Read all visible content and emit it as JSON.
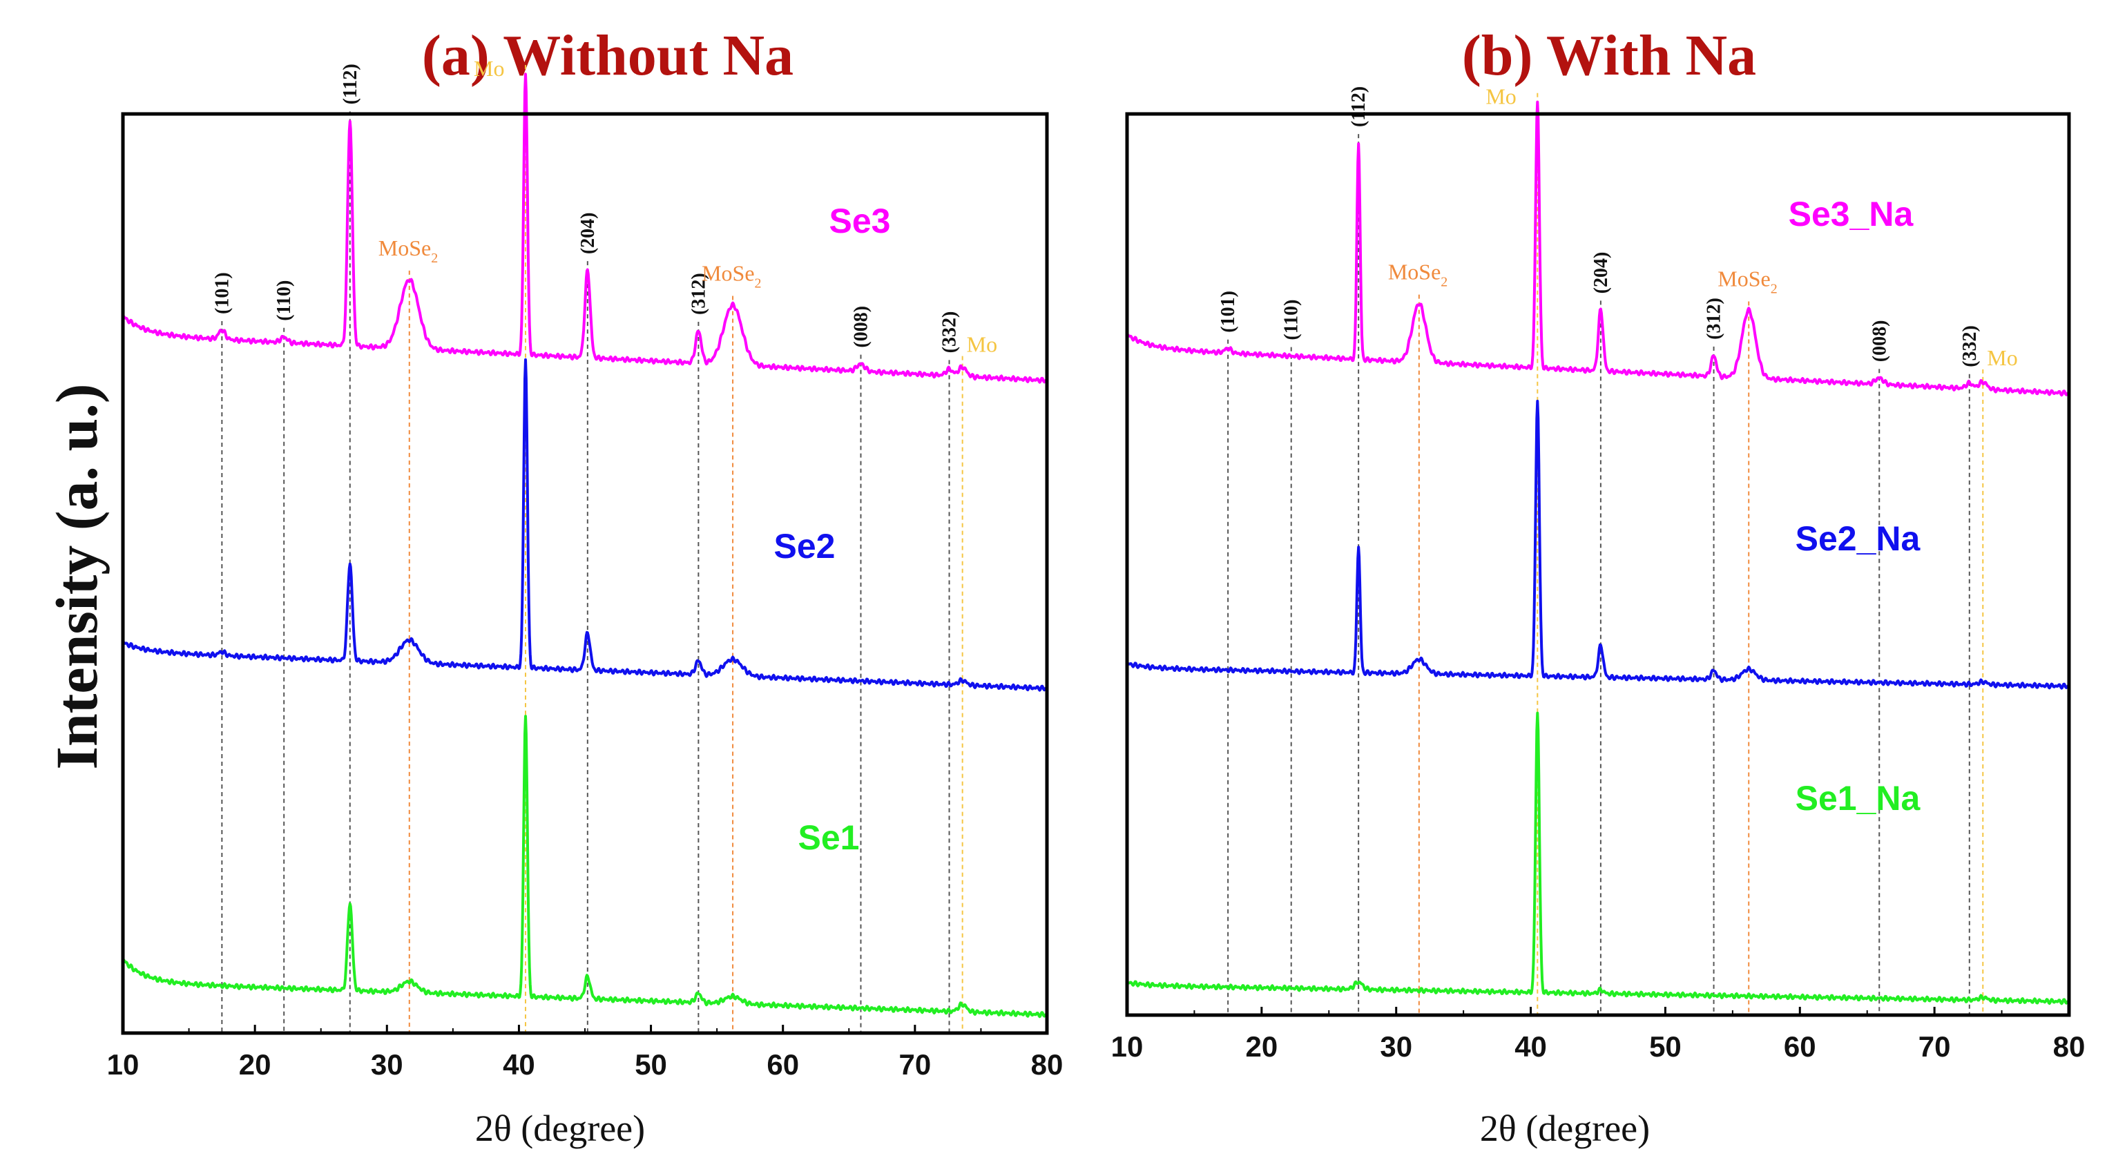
{
  "colors": {
    "title": "#b3120f",
    "mose2_ref": "#f08a3c",
    "mo_ref": "#f5c542",
    "hkl_ref": "#555555",
    "Se3": "#ff00ff",
    "Se2": "#1010ee",
    "Se1": "#22ee22"
  },
  "y_axis_label": "Intensity (a. u.)",
  "chart_data": [
    {
      "type": "line",
      "title": "(a) Without Na",
      "xlabel": "2θ (degree)",
      "ylabel": "Intensity (a. u.)",
      "xlim": [
        10,
        80
      ],
      "ylim": [
        0,
        100
      ],
      "grid": false,
      "xticks": [
        10,
        20,
        30,
        40,
        50,
        60,
        70,
        80
      ],
      "reference_lines": [
        {
          "x": 17.5,
          "label": "(101)",
          "kind": "hkl"
        },
        {
          "x": 22.2,
          "label": "(110)",
          "kind": "hkl"
        },
        {
          "x": 27.2,
          "label": "(112)",
          "kind": "hkl"
        },
        {
          "x": 31.7,
          "label": "MoSe",
          "sub": "2",
          "kind": "mose2"
        },
        {
          "x": 40.5,
          "label": "Mo",
          "kind": "mo"
        },
        {
          "x": 45.2,
          "label": "(204)",
          "kind": "hkl"
        },
        {
          "x": 53.6,
          "label": "(312)",
          "kind": "hkl"
        },
        {
          "x": 56.2,
          "label": "MoSe",
          "sub": "2",
          "kind": "mose2"
        },
        {
          "x": 65.9,
          "label": "(008)",
          "kind": "hkl"
        },
        {
          "x": 72.6,
          "label": "(332)",
          "kind": "hkl"
        },
        {
          "x": 73.6,
          "label": "Mo",
          "kind": "mo"
        }
      ],
      "series": [
        {
          "name": "Se3",
          "color": "#ff00ff",
          "baseline": [
            76,
            71
          ],
          "initial_bump": 2.0,
          "peaks": [
            {
              "x": 17.5,
              "h": 1.0,
              "w": 0.25
            },
            {
              "x": 22.2,
              "h": 0.6,
              "w": 0.25
            },
            {
              "x": 27.2,
              "h": 24.5,
              "w": 0.18
            },
            {
              "x": 31.7,
              "h": 7.5,
              "w": 0.7
            },
            {
              "x": 40.5,
              "h": 30.5,
              "w": 0.14
            },
            {
              "x": 45.2,
              "h": 9.5,
              "w": 0.2
            },
            {
              "x": 53.6,
              "h": 3.5,
              "w": 0.22
            },
            {
              "x": 56.2,
              "h": 6.5,
              "w": 0.7
            },
            {
              "x": 65.9,
              "h": 0.8,
              "w": 0.3
            },
            {
              "x": 72.6,
              "h": 0.7,
              "w": 0.25
            },
            {
              "x": 73.6,
              "h": 1.0,
              "w": 0.3
            }
          ]
        },
        {
          "name": "Se2",
          "color": "#1010ee",
          "baseline": [
            41.5,
            37.5
          ],
          "initial_bump": 1.0,
          "peaks": [
            {
              "x": 17.5,
              "h": 0.4,
              "w": 0.25
            },
            {
              "x": 27.2,
              "h": 10.6,
              "w": 0.18
            },
            {
              "x": 31.7,
              "h": 2.5,
              "w": 0.7
            },
            {
              "x": 40.5,
              "h": 33.5,
              "w": 0.14
            },
            {
              "x": 45.2,
              "h": 4.0,
              "w": 0.2
            },
            {
              "x": 53.6,
              "h": 1.5,
              "w": 0.22
            },
            {
              "x": 56.2,
              "h": 1.8,
              "w": 0.7
            },
            {
              "x": 73.6,
              "h": 0.5,
              "w": 0.3
            }
          ]
        },
        {
          "name": "Se1",
          "color": "#22ee22",
          "baseline": [
            5.5,
            2.0
          ],
          "initial_bump": 2.5,
          "peaks": [
            {
              "x": 27.2,
              "h": 9.5,
              "w": 0.18
            },
            {
              "x": 31.7,
              "h": 1.2,
              "w": 0.6
            },
            {
              "x": 40.5,
              "h": 30.5,
              "w": 0.14
            },
            {
              "x": 45.2,
              "h": 2.4,
              "w": 0.2
            },
            {
              "x": 53.6,
              "h": 1.0,
              "w": 0.22
            },
            {
              "x": 56.2,
              "h": 0.8,
              "w": 0.6
            },
            {
              "x": 73.6,
              "h": 0.8,
              "w": 0.3
            }
          ]
        }
      ],
      "series_labels": [
        "Se3",
        "Se2",
        "Se1"
      ]
    },
    {
      "type": "line",
      "title": "(b) With Na",
      "xlabel": "2θ (degree)",
      "ylabel": "",
      "xlim": [
        10,
        80
      ],
      "ylim": [
        0,
        100
      ],
      "grid": false,
      "xticks": [
        10,
        20,
        30,
        40,
        50,
        60,
        70,
        80
      ],
      "reference_lines": [
        {
          "x": 17.5,
          "label": "(101)",
          "kind": "hkl"
        },
        {
          "x": 22.2,
          "label": "(110)",
          "kind": "hkl"
        },
        {
          "x": 27.2,
          "label": "(112)",
          "kind": "hkl"
        },
        {
          "x": 31.7,
          "label": "MoSe",
          "sub": "2",
          "kind": "mose2"
        },
        {
          "x": 40.5,
          "label": "Mo",
          "kind": "mo"
        },
        {
          "x": 45.2,
          "label": "(204)",
          "kind": "hkl"
        },
        {
          "x": 53.6,
          "label": "(312)",
          "kind": "hkl"
        },
        {
          "x": 56.2,
          "label": "MoSe",
          "sub": "2",
          "kind": "mose2"
        },
        {
          "x": 65.9,
          "label": "(008)",
          "kind": "hkl"
        },
        {
          "x": 72.6,
          "label": "(332)",
          "kind": "hkl"
        },
        {
          "x": 73.6,
          "label": "Mo",
          "kind": "mo"
        }
      ],
      "series": [
        {
          "name": "Se3_Na",
          "color": "#ff00ff",
          "baseline": [
            74,
            69
          ],
          "initial_bump": 1.5,
          "peaks": [
            {
              "x": 17.5,
              "h": 0.5,
              "w": 0.25
            },
            {
              "x": 27.2,
              "h": 24.0,
              "w": 0.12
            },
            {
              "x": 31.7,
              "h": 6.5,
              "w": 0.5
            },
            {
              "x": 40.5,
              "h": 29.5,
              "w": 0.14
            },
            {
              "x": 45.2,
              "h": 6.8,
              "w": 0.18
            },
            {
              "x": 53.6,
              "h": 2.3,
              "w": 0.2
            },
            {
              "x": 56.2,
              "h": 7.5,
              "w": 0.5
            },
            {
              "x": 65.9,
              "h": 0.7,
              "w": 0.3
            },
            {
              "x": 72.6,
              "h": 0.6,
              "w": 0.25
            },
            {
              "x": 73.6,
              "h": 0.8,
              "w": 0.3
            }
          ]
        },
        {
          "name": "Se2_Na",
          "color": "#1010ee",
          "baseline": [
            38.5,
            36.5
          ],
          "initial_bump": 0.5,
          "peaks": [
            {
              "x": 27.2,
              "h": 14.0,
              "w": 0.12
            },
            {
              "x": 31.7,
              "h": 1.6,
              "w": 0.5
            },
            {
              "x": 40.5,
              "h": 30.5,
              "w": 0.14
            },
            {
              "x": 45.2,
              "h": 3.5,
              "w": 0.18
            },
            {
              "x": 53.6,
              "h": 1.0,
              "w": 0.2
            },
            {
              "x": 56.2,
              "h": 1.2,
              "w": 0.5
            },
            {
              "x": 73.6,
              "h": 0.3,
              "w": 0.3
            }
          ]
        },
        {
          "name": "Se1_Na",
          "color": "#22ee22",
          "baseline": [
            3.3,
            1.5
          ],
          "initial_bump": 0.3,
          "peaks": [
            {
              "x": 27.2,
              "h": 0.8,
              "w": 0.3
            },
            {
              "x": 40.5,
              "h": 31.0,
              "w": 0.14
            },
            {
              "x": 45.2,
              "h": 0.4,
              "w": 0.2
            },
            {
              "x": 73.6,
              "h": 0.3,
              "w": 0.3
            }
          ]
        }
      ],
      "series_labels": [
        "Se3_Na",
        "Se2_Na",
        "Se1_Na"
      ]
    }
  ]
}
